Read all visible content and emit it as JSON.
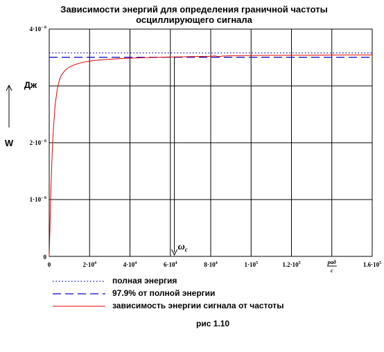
{
  "chart_data": {
    "type": "line",
    "title": [
      "Зависимости энергий для определения граничной частоты",
      "осциллирующего сигнала"
    ],
    "xlim": [
      0,
      160000
    ],
    "ylim": [
      0,
      4e-06
    ],
    "x_ticks": [
      {
        "value": 0,
        "label": "0"
      },
      {
        "value": 20000,
        "label": "2·10",
        "exp": "4"
      },
      {
        "value": 40000,
        "label": "4·10",
        "exp": "4"
      },
      {
        "value": 60000,
        "label": "6·10",
        "exp": "4"
      },
      {
        "value": 80000,
        "label": "8·10",
        "exp": "4"
      },
      {
        "value": 100000,
        "label": "1·10",
        "exp": "5"
      },
      {
        "value": 120000,
        "label": "1.2·10",
        "exp": "5"
      },
      {
        "value": 160000,
        "label": "1.6·10",
        "exp": "5"
      }
    ],
    "y_ticks": [
      {
        "value": 0,
        "label": "0"
      },
      {
        "value": 1e-06,
        "label": "1·10",
        "exp": "− 6"
      },
      {
        "value": 2e-06,
        "label": "2·10",
        "exp": "− 6"
      },
      {
        "value": 4e-06,
        "label": "4·10",
        "exp": "− 6"
      }
    ],
    "x_unit_label": {
      "numerator": "рад",
      "denominator": "с"
    },
    "xlabel": "ω",
    "ylabel": "W",
    "y_unit": "Дж",
    "cutoff_label": "ω",
    "cutoff_sub": "с",
    "cutoff_x": 62000,
    "series": [
      {
        "name": "полная энергия",
        "style": "dotted",
        "color": "#0000cc",
        "x": [
          0,
          160000
        ],
        "y": [
          3.58e-06,
          3.58e-06
        ]
      },
      {
        "name": "97.9% от полной энергии",
        "style": "dashed",
        "color": "#0000cc",
        "x": [
          0,
          160000
        ],
        "y": [
          3.505e-06,
          3.505e-06
        ]
      },
      {
        "name": "зависимость энергии сигнала от частоты",
        "style": "solid",
        "color": "#e00000",
        "x": [
          0,
          500,
          1000,
          1500,
          2000,
          3000,
          4000,
          5000,
          6000,
          8000,
          10000,
          12000,
          15000,
          18000,
          22000,
          26000,
          30000,
          35000,
          40000,
          45000,
          50000,
          55000,
          60000,
          65000,
          70000,
          75000,
          80000,
          82000,
          84000,
          86000,
          90000,
          100000,
          110000,
          120000,
          130000,
          140000,
          150000,
          160000
        ],
        "y": [
          0,
          7e-07,
          1.35e-06,
          1.85e-06,
          2.2e-06,
          2.68e-06,
          2.95e-06,
          3.1e-06,
          3.19e-06,
          3.28e-06,
          3.33e-06,
          3.365e-06,
          3.4e-06,
          3.425e-06,
          3.445e-06,
          3.46e-06,
          3.47e-06,
          3.48e-06,
          3.488e-06,
          3.495e-06,
          3.5e-06,
          3.505e-06,
          3.508e-06,
          3.511e-06,
          3.515e-06,
          3.518e-06,
          3.522e-06,
          3.528e-06,
          3.515e-06,
          3.526e-06,
          3.53e-06,
          3.535e-06,
          3.538e-06,
          3.54e-06,
          3.542e-06,
          3.544e-06,
          3.545e-06,
          3.546e-06
        ]
      }
    ]
  },
  "caption": "рис 1.10"
}
